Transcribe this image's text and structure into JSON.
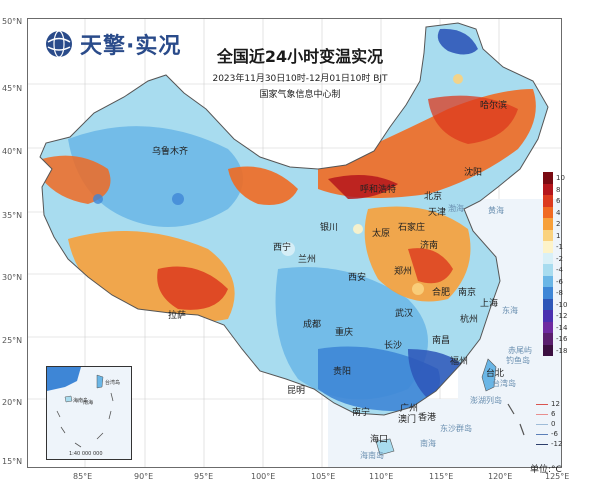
{
  "brand": {
    "name": "天擎·实况"
  },
  "header": {
    "title": "全国近24小时变温实况",
    "time_range": "2023年11月30日10时-12月01日10时 BJT",
    "source": "国家气象信息中心制"
  },
  "axes": {
    "lat_labels": [
      "50°N",
      "45°N",
      "40°N",
      "35°N",
      "30°N",
      "25°N",
      "20°N",
      "15°N"
    ],
    "lon_labels": [
      "85°E",
      "90°E",
      "95°E",
      "100°E",
      "105°E",
      "110°E",
      "115°E",
      "120°E",
      "125°E"
    ]
  },
  "cities": [
    "哈尔滨",
    "乌鲁木齐",
    "沈阳",
    "呼和浩特",
    "北京",
    "天津",
    "石家庄",
    "银川",
    "太原",
    "济南",
    "西宁",
    "兰州",
    "郑州",
    "西安",
    "合肥",
    "南京",
    "上海",
    "成都",
    "武汉",
    "杭州",
    "重庆",
    "长沙",
    "南昌",
    "拉萨",
    "贵阳",
    "福州",
    "昆明",
    "台北",
    "南宁",
    "广州",
    "香港",
    "澳门",
    "海口"
  ],
  "seas": [
    "黄海",
    "东海",
    "渤海",
    "南海",
    "台湾岛",
    "赤尾屿",
    "钓鱼岛",
    "澎湖列岛",
    "东沙群岛",
    "海南岛"
  ],
  "inset": {
    "labels": [
      "南海",
      "台湾岛",
      "海南岛",
      "1:40 000 000"
    ]
  },
  "colorbar": {
    "labels": [
      "10",
      "8",
      "6",
      "4",
      "2",
      "1",
      "-1",
      "-2",
      "-4",
      "-6",
      "-8",
      "-10",
      "-12",
      "-14",
      "-16",
      "-18"
    ],
    "colors": [
      "#7a0a12",
      "#b5161c",
      "#dc3a1e",
      "#f06a22",
      "#f7a03a",
      "#fad27e",
      "#fdf3c9",
      "#d9f0f7",
      "#a8dcef",
      "#6ab6e6",
      "#3e86d6",
      "#2d56b8",
      "#4a2fb0",
      "#6e2aa0",
      "#5a1f6e",
      "#3b0f40"
    ]
  },
  "legend": {
    "items": [
      {
        "label": "12",
        "color": "#d9534f"
      },
      {
        "label": "6",
        "color": "#e88e8e"
      },
      {
        "label": "0",
        "color": "#9fbcd8"
      },
      {
        "label": "-6",
        "color": "#5b7fb8"
      },
      {
        "label": "-12",
        "color": "#2c3e6b"
      }
    ]
  },
  "unit_label": "单位:°C"
}
